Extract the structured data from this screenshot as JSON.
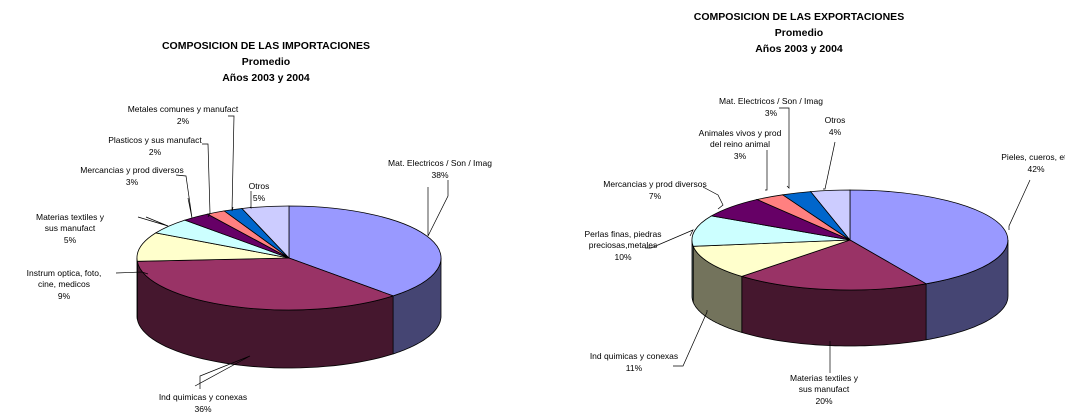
{
  "chart_data": [
    {
      "type": "pie",
      "title": "COMPOSICION DE LAS IMPORTACIONES",
      "subtitle": "Promedio",
      "period": "Años 2003 y 2004",
      "slices": [
        {
          "label": "Mat. Electricos / Son / Imag",
          "value": 38,
          "pct": "38%",
          "color": "#9999ff"
        },
        {
          "label": "Ind quimicas y conexas",
          "value": 36,
          "pct": "36%",
          "color": "#993366"
        },
        {
          "label": "Instrum optica, foto, cine, medicos",
          "value": 9,
          "pct": "9%",
          "color": "#ffffcc"
        },
        {
          "label": "Materias textiles y sus manufact",
          "value": 5,
          "pct": "5%",
          "color": "#ccffff"
        },
        {
          "label": "Mercancias y prod diversos",
          "value": 3,
          "pct": "3%",
          "color": "#660066"
        },
        {
          "label": "Plasticos y sus manufact",
          "value": 2,
          "pct": "2%",
          "color": "#ff8080"
        },
        {
          "label": "Metales comunes y manufact",
          "value": 2,
          "pct": "2%",
          "color": "#0066cc"
        },
        {
          "label": "Otros",
          "value": 5,
          "pct": "5%",
          "color": "#ccccff"
        }
      ]
    },
    {
      "type": "pie",
      "title": "COMPOSICION DE LAS EXPORTACIONES",
      "subtitle": "Promedio",
      "period": "Años 2003 y 2004",
      "slices": [
        {
          "label": "Pieles, cueros, etc",
          "value": 42,
          "pct": "42%",
          "color": "#9999ff"
        },
        {
          "label": "Materias textiles y sus manufact",
          "value": 20,
          "pct": "20%",
          "color": "#993366"
        },
        {
          "label": "Ind quimicas y conexas",
          "value": 11,
          "pct": "11%",
          "color": "#ffffcc"
        },
        {
          "label": "Perlas finas, piedras preciosas,metales",
          "value": 10,
          "pct": "10%",
          "color": "#ccffff"
        },
        {
          "label": "Mercancias y prod diversos",
          "value": 7,
          "pct": "7%",
          "color": "#660066"
        },
        {
          "label": "Animales vivos y prod del reino animal",
          "value": 3,
          "pct": "3%",
          "color": "#ff8080"
        },
        {
          "label": "Mat. Electricos / Son / Imag",
          "value": 3,
          "pct": "3%",
          "color": "#0066cc"
        },
        {
          "label": "Otros",
          "value": 4,
          "pct": "4%",
          "color": "#ccccff"
        }
      ]
    }
  ]
}
